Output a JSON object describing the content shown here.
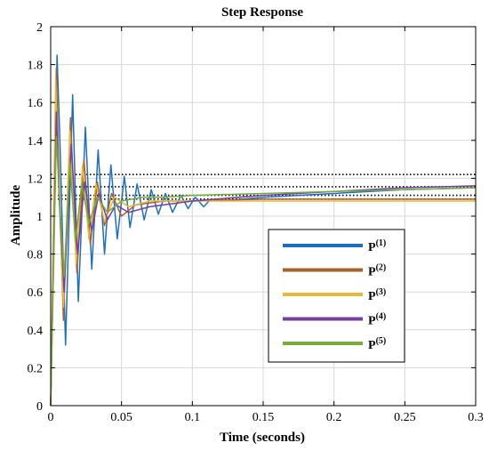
{
  "chart_data": {
    "type": "line",
    "title": "Step Response",
    "xlabel": "Time (seconds)",
    "ylabel": "Amplitude",
    "xlim": [
      0,
      0.3
    ],
    "ylim": [
      0,
      2
    ],
    "xticks": [
      "0",
      "0.05",
      "0.1",
      "0.15",
      "0.2",
      "0.25",
      "0.3"
    ],
    "xtick_values": [
      0,
      0.05,
      0.1,
      0.15,
      0.2,
      0.25,
      0.3
    ],
    "yticks": [
      "0",
      "0.2",
      "0.4",
      "0.6",
      "0.8",
      "1",
      "1.2",
      "1.4",
      "1.6",
      "1.8",
      "2"
    ],
    "ytick_values": [
      0,
      0.2,
      0.4,
      0.6,
      0.8,
      1.0,
      1.2,
      1.4,
      1.6,
      1.8,
      2.0
    ],
    "grid": true,
    "legend_position": "lower-right",
    "reference_lines": [
      1.22,
      1.155,
      1.11,
      1.09
    ],
    "series": [
      {
        "name": "P",
        "superscript": "(1)",
        "color": "#1f6fc0",
        "x": [
          0,
          0.0045,
          0.0065,
          0.0105,
          0.0155,
          0.0195,
          0.0245,
          0.029,
          0.0335,
          0.038,
          0.0425,
          0.047,
          0.052,
          0.056,
          0.061,
          0.066,
          0.071,
          0.076,
          0.081,
          0.086,
          0.092,
          0.097,
          0.102,
          0.108,
          0.113,
          0.12,
          0.15,
          0.2,
          0.25,
          0.3
        ],
        "y": [
          0,
          1.85,
          1.4,
          0.32,
          1.64,
          0.55,
          1.47,
          0.72,
          1.35,
          0.8,
          1.27,
          0.88,
          1.21,
          0.94,
          1.17,
          0.98,
          1.14,
          1.01,
          1.12,
          1.02,
          1.11,
          1.04,
          1.1,
          1.05,
          1.09,
          1.08,
          1.1,
          1.12,
          1.14,
          1.15
        ]
      },
      {
        "name": "P",
        "superscript": "(2)",
        "color": "#a8622a",
        "x": [
          0,
          0.004,
          0.0055,
          0.009,
          0.014,
          0.0185,
          0.0235,
          0.028,
          0.033,
          0.038,
          0.043,
          0.05,
          0.06,
          0.08,
          0.1,
          0.15,
          0.2,
          0.3
        ],
        "y": [
          0,
          1.78,
          1.3,
          0.45,
          1.52,
          0.7,
          1.3,
          0.85,
          1.18,
          0.95,
          1.12,
          1.0,
          1.06,
          1.08,
          1.08,
          1.09,
          1.09,
          1.09
        ]
      },
      {
        "name": "P",
        "superscript": "(3)",
        "color": "#e8b83a",
        "x": [
          0,
          0.0035,
          0.0055,
          0.009,
          0.0135,
          0.018,
          0.0225,
          0.027,
          0.032,
          0.038,
          0.045,
          0.055,
          0.07,
          0.1,
          0.15,
          0.2,
          0.3
        ],
        "y": [
          0,
          1.72,
          1.2,
          0.52,
          1.45,
          0.75,
          1.27,
          0.88,
          1.17,
          0.97,
          1.1,
          1.05,
          1.08,
          1.08,
          1.08,
          1.08,
          1.08
        ]
      },
      {
        "name": "P",
        "superscript": "(4)",
        "color": "#7540a0",
        "x": [
          0,
          0.004,
          0.006,
          0.0095,
          0.0145,
          0.019,
          0.024,
          0.029,
          0.034,
          0.04,
          0.046,
          0.055,
          0.07,
          0.1,
          0.15,
          0.2,
          0.25,
          0.3
        ],
        "y": [
          0,
          1.55,
          1.1,
          0.6,
          1.38,
          0.8,
          1.18,
          0.92,
          1.12,
          0.98,
          1.06,
          1.02,
          1.05,
          1.08,
          1.11,
          1.13,
          1.15,
          1.16
        ]
      },
      {
        "name": "P",
        "superscript": "(5)",
        "color": "#78ab3c",
        "x": [
          0,
          0.004,
          0.0065,
          0.0095,
          0.0135,
          0.0175,
          0.022,
          0.027,
          0.033,
          0.04,
          0.05,
          0.065,
          0.08,
          0.1,
          0.15,
          0.2,
          0.25,
          0.3
        ],
        "y": [
          0,
          1.42,
          1.05,
          0.68,
          1.28,
          0.87,
          1.17,
          0.96,
          1.1,
          1.02,
          1.08,
          1.1,
          1.1,
          1.11,
          1.12,
          1.13,
          1.14,
          1.15
        ]
      }
    ]
  }
}
